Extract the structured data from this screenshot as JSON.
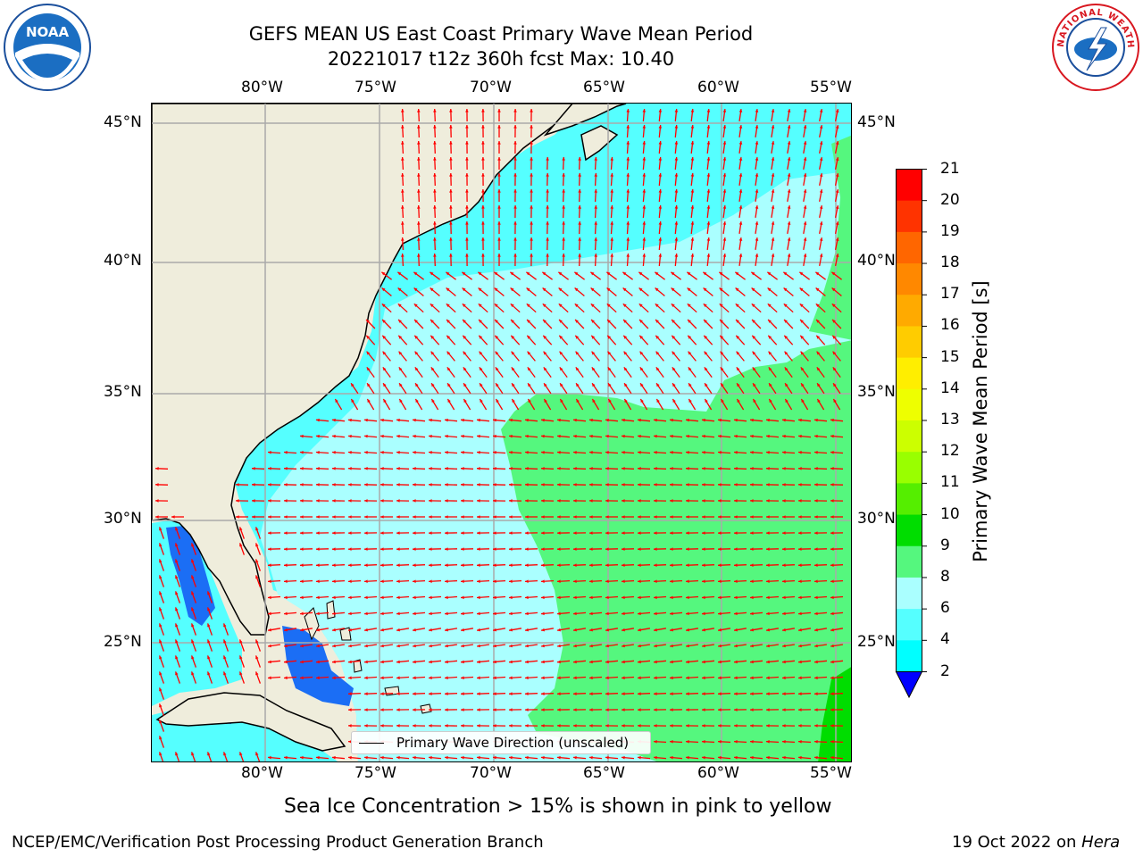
{
  "title": {
    "line1": "GEFS MEAN US East Coast Primary Wave Mean Period",
    "line2": "20221017 t12z 360h fcst   Max: 10.40"
  },
  "axes": {
    "lon_labels": [
      "80°W",
      "75°W",
      "70°W",
      "65°W",
      "60°W",
      "55°W"
    ],
    "lat_labels": [
      "45°N",
      "40°N",
      "35°N",
      "30°N",
      "25°N"
    ]
  },
  "legend": {
    "label": "Primary Wave Direction (unscaled)"
  },
  "colorbar": {
    "label": "Primary Wave Mean Period [s]",
    "ticks": [
      "21",
      "20",
      "19",
      "18",
      "17",
      "16",
      "15",
      "14",
      "13",
      "12",
      "11",
      "10",
      "9",
      "8",
      "6",
      "4",
      "2"
    ],
    "colors": [
      "#ff0000",
      "#ff3300",
      "#ff6600",
      "#ff8800",
      "#ffaa00",
      "#ffcc00",
      "#ffee00",
      "#eeff00",
      "#ccff00",
      "#99ff00",
      "#55ee00",
      "#00dd00",
      "#55f77e",
      "#aaffff",
      "#55ffff",
      "#00ffff",
      "#0088ff",
      "#0000ff"
    ]
  },
  "map": {
    "arrow_color": "#ff0000",
    "land_color": "#efeddc",
    "grid_color": "#aaaaaa"
  },
  "notes": {
    "ice": "Sea Ice Concentration > 15% is shown in pink to yellow"
  },
  "footer": {
    "left": "NCEP/EMC/Verification Post Processing Product Generation Branch",
    "date": "19 Oct 2022 on",
    "machine": "Hera"
  },
  "logos": {
    "noaa_text": "NOAA",
    "nws_text": "NATIONAL WEATHER SERVICE"
  }
}
